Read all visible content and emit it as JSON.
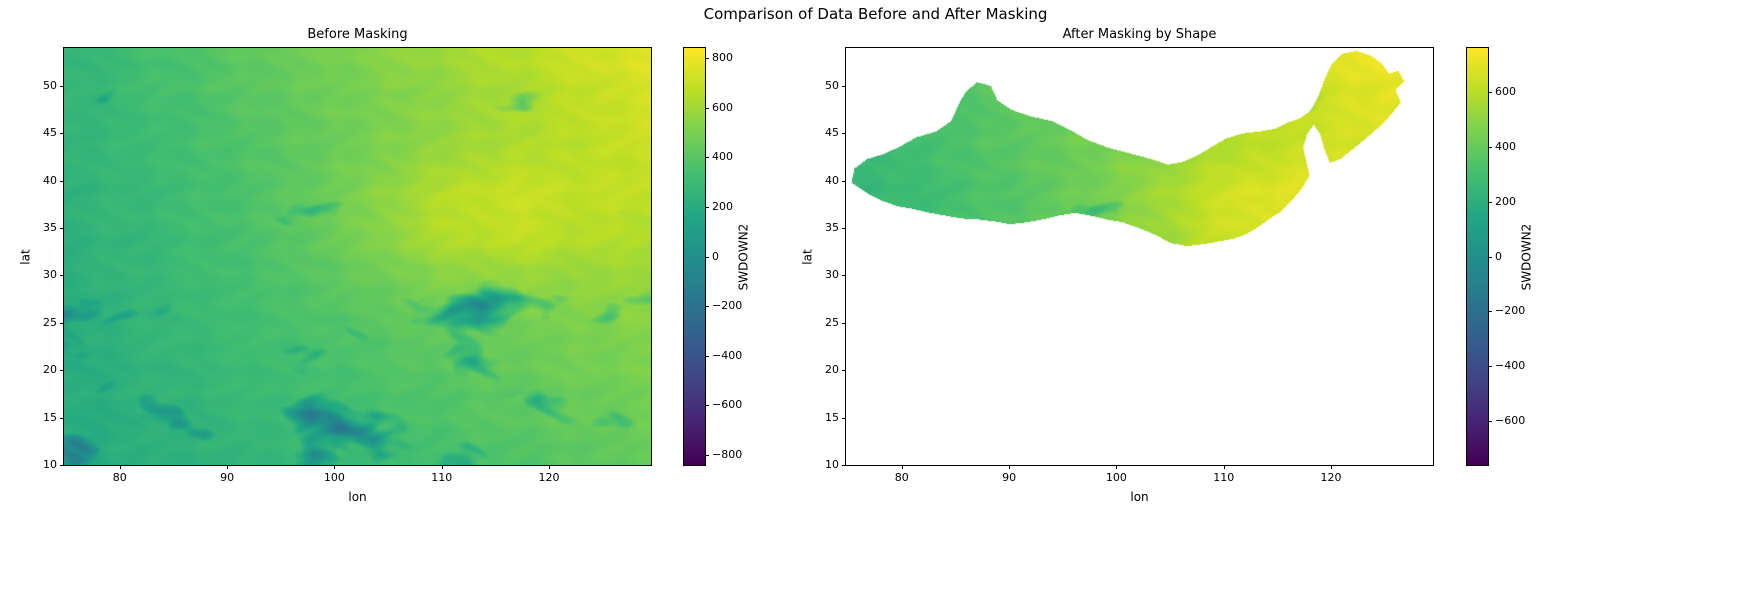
{
  "figure": {
    "title": "Comparison of Data Before and After Masking",
    "background": "#ffffff"
  },
  "chart_data": [
    {
      "type": "heatmap",
      "title": "Before Masking",
      "xlabel": "lon",
      "ylabel": "lat",
      "xlim": [
        74.8,
        129.5
      ],
      "ylim": [
        10,
        54
      ],
      "xticks": [
        80,
        90,
        100,
        110,
        120
      ],
      "yticks": [
        10,
        15,
        20,
        25,
        30,
        35,
        40,
        45,
        50
      ],
      "colormap": "viridis",
      "colorbar_label": "SWDOWN2",
      "colorbar_ticks": [
        800,
        600,
        400,
        200,
        0,
        -200,
        -400,
        -600,
        -800
      ],
      "vmin": -840,
      "vmax": 840,
      "field_summary": "SWDOWN2 field over East Asia: teal-green values around 200-350 in the west rising to yellow values around 700-800 toward the northeast corner; scattered dark teal cloud patches (values near or below 0), densest south of 30N in the southeast and in streaks across the north"
    },
    {
      "type": "heatmap",
      "title": "After Masking by Shape",
      "xlabel": "lon",
      "ylabel": "lat",
      "xlim": [
        74.8,
        129.5
      ],
      "ylim": [
        10,
        54
      ],
      "xticks": [
        80,
        90,
        100,
        110,
        120
      ],
      "yticks": [
        10,
        15,
        20,
        25,
        30,
        35,
        40,
        45,
        50
      ],
      "colormap": "viridis",
      "colorbar_label": "SWDOWN2",
      "colorbar_ticks": [
        600,
        400,
        200,
        0,
        -200,
        -400,
        -600
      ],
      "vmin": -760,
      "vmax": 760,
      "field_summary": "Same SWDOWN2 field clipped to a northern-China shape on a white background: teal-green (about 250-350) in the western lobe, green in the center, yellow (about 600-750) in the northeastern arm",
      "mask_polygon": [
        [
          75.3,
          39.8
        ],
        [
          75.6,
          41.3
        ],
        [
          76.8,
          42.3
        ],
        [
          78.3,
          42.8
        ],
        [
          79.8,
          43.6
        ],
        [
          81.4,
          44.6
        ],
        [
          83.2,
          45.2
        ],
        [
          84.6,
          46.3
        ],
        [
          85.2,
          47.8
        ],
        [
          85.9,
          49.3
        ],
        [
          87.0,
          50.4
        ],
        [
          88.3,
          50.0
        ],
        [
          88.9,
          48.5
        ],
        [
          90.2,
          47.5
        ],
        [
          92.0,
          46.8
        ],
        [
          94.0,
          46.3
        ],
        [
          95.6,
          45.4
        ],
        [
          97.3,
          44.3
        ],
        [
          99.2,
          43.5
        ],
        [
          101.2,
          42.9
        ],
        [
          103.2,
          42.3
        ],
        [
          104.8,
          41.7
        ],
        [
          106.2,
          42.0
        ],
        [
          107.6,
          42.7
        ],
        [
          108.9,
          43.6
        ],
        [
          110.3,
          44.5
        ],
        [
          111.8,
          45.0
        ],
        [
          113.4,
          45.2
        ],
        [
          114.8,
          45.5
        ],
        [
          116.1,
          46.2
        ],
        [
          117.1,
          46.6
        ],
        [
          118.1,
          47.4
        ],
        [
          118.8,
          48.9
        ],
        [
          119.4,
          50.7
        ],
        [
          120.1,
          52.4
        ],
        [
          121.0,
          53.4
        ],
        [
          122.4,
          53.7
        ],
        [
          123.7,
          53.2
        ],
        [
          124.7,
          52.4
        ],
        [
          125.4,
          51.3
        ],
        [
          126.3,
          51.6
        ],
        [
          126.8,
          50.5
        ],
        [
          126.0,
          49.6
        ],
        [
          126.5,
          48.3
        ],
        [
          125.7,
          47.1
        ],
        [
          124.7,
          45.9
        ],
        [
          123.4,
          44.6
        ],
        [
          122.1,
          43.4
        ],
        [
          120.9,
          42.3
        ],
        [
          119.9,
          41.9
        ],
        [
          119.4,
          43.2
        ],
        [
          119.0,
          44.9
        ],
        [
          118.4,
          45.9
        ],
        [
          117.8,
          45.0
        ],
        [
          117.4,
          43.5
        ],
        [
          117.7,
          42.0
        ],
        [
          118.0,
          40.6
        ],
        [
          117.3,
          39.2
        ],
        [
          116.4,
          38.0
        ],
        [
          115.4,
          36.8
        ],
        [
          114.3,
          36.0
        ],
        [
          113.3,
          35.2
        ],
        [
          112.2,
          34.4
        ],
        [
          111.0,
          33.9
        ],
        [
          109.6,
          33.6
        ],
        [
          108.1,
          33.3
        ],
        [
          106.6,
          33.1
        ],
        [
          105.1,
          33.4
        ],
        [
          103.6,
          34.3
        ],
        [
          102.1,
          35.0
        ],
        [
          100.6,
          35.6
        ],
        [
          99.1,
          35.9
        ],
        [
          97.6,
          36.3
        ],
        [
          96.1,
          36.6
        ],
        [
          94.6,
          36.3
        ],
        [
          93.1,
          35.9
        ],
        [
          91.6,
          35.6
        ],
        [
          90.1,
          35.4
        ],
        [
          88.6,
          35.7
        ],
        [
          87.1,
          35.9
        ],
        [
          85.6,
          36.0
        ],
        [
          84.1,
          36.3
        ],
        [
          82.6,
          36.6
        ],
        [
          81.1,
          37.0
        ],
        [
          79.6,
          37.3
        ],
        [
          78.1,
          37.9
        ],
        [
          76.9,
          38.6
        ]
      ]
    }
  ]
}
